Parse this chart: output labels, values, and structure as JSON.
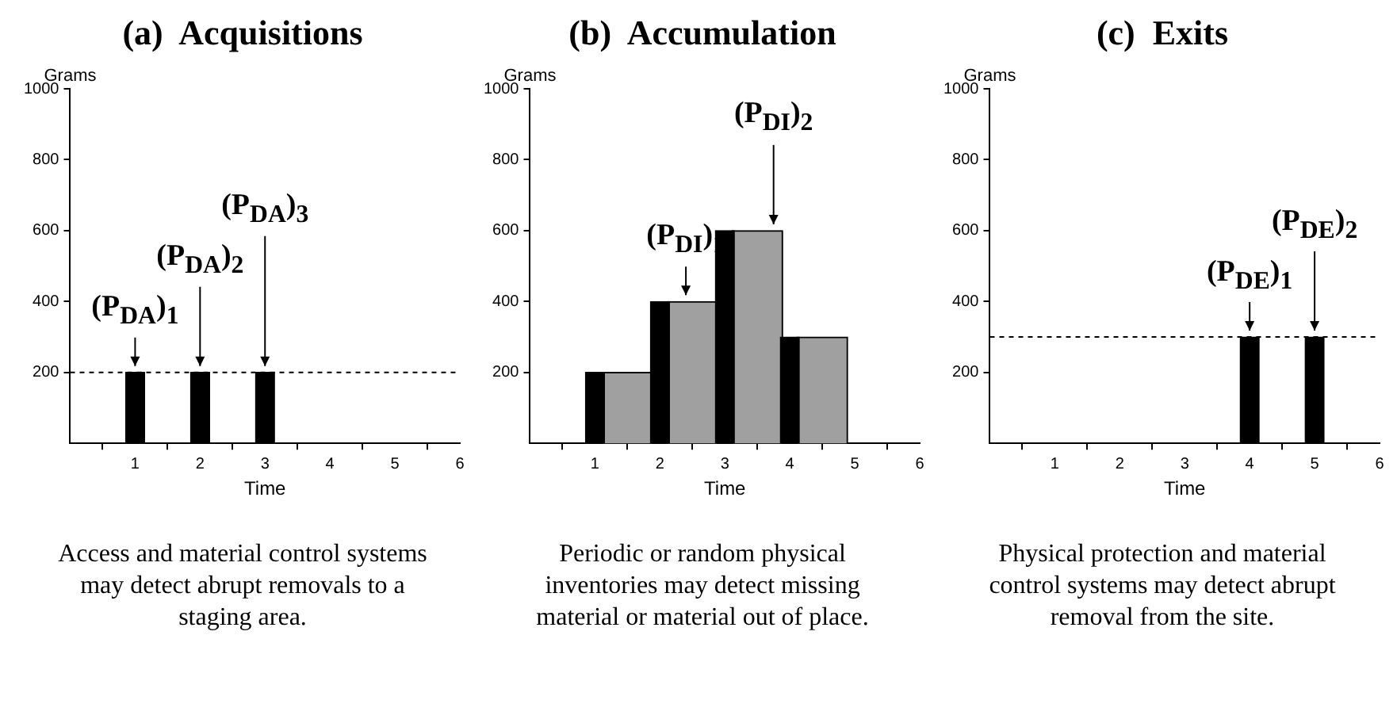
{
  "chart_data": [
    {
      "type": "bar",
      "title": "(a)  Acquisitions",
      "xlabel": "Time",
      "ylabel": "Grams",
      "xlim": [
        0,
        6
      ],
      "xticks": [
        1,
        2,
        3,
        4,
        5,
        6
      ],
      "ylim": [
        0,
        1000
      ],
      "yticks": [
        200,
        400,
        600,
        800,
        1000
      ],
      "series": [
        {
          "color": "#000000",
          "x": [
            1,
            2,
            3
          ],
          "values": [
            200,
            200,
            200
          ]
        }
      ],
      "ref_lines": [
        {
          "axis": "y",
          "value": 200,
          "color": "#000000",
          "line_style": "dashed"
        }
      ],
      "annotations": [
        {
          "text": "(P$_{DA}$)$_{1}$",
          "x": 1,
          "y": 200
        },
        {
          "text": "(P$_{DA}$)$_{2}$",
          "x": 2,
          "y": 200
        },
        {
          "text": "(P$_{DA}$)$_{3}$",
          "x": 3,
          "y": 200
        },
        "Access and material control systems may detect abrupt removals to a staging area."
      ]
    },
    {
      "type": "bar",
      "title": "(b)  Accumulation",
      "xlabel": "Time",
      "ylabel": "Grams",
      "xlim": [
        0,
        6
      ],
      "xticks": [
        1,
        2,
        3,
        4,
        5,
        6
      ],
      "ylim": [
        0,
        1000
      ],
      "yticks": [
        200,
        400,
        600,
        800,
        1000
      ],
      "series": [
        {
          "color": "#a0a0a0",
          "x": [
            1.5,
            2.5,
            3.5,
            4.5
          ],
          "values": [
            200,
            400,
            600,
            300
          ]
        },
        {
          "color": "#000000",
          "x": [
            1,
            2,
            3,
            4
          ],
          "values": [
            200,
            400,
            600,
            300
          ]
        }
      ],
      "annotations": [
        {
          "text": "(P$_{DI}$)$_{1}$",
          "x": 2.4,
          "y": 400
        },
        {
          "text": "(P$_{DI}$)$_{2}$",
          "x": 3.75,
          "y": 600
        },
        "Periodic or random physical inventories may detect missing material or material out of place."
      ]
    },
    {
      "type": "bar",
      "title": "(c)  Exits",
      "xlabel": "Time",
      "ylabel": "Grams",
      "xlim": [
        0,
        6
      ],
      "xticks": [
        1,
        2,
        3,
        4,
        5,
        6
      ],
      "ylim": [
        0,
        1000
      ],
      "yticks": [
        200,
        400,
        600,
        800,
        1000
      ],
      "series": [
        {
          "color": "#000000",
          "x": [
            4,
            5
          ],
          "values": [
            300,
            300
          ]
        }
      ],
      "ref_lines": [
        {
          "axis": "y",
          "value": 300,
          "color": "#000000",
          "line_style": "dashed"
        }
      ],
      "annotations": [
        {
          "text": "(P$_{DE}$)$_{1}$",
          "x": 4,
          "y": 300
        },
        {
          "text": "(P$_{DE}$)$_{2}$",
          "x": 5,
          "y": 300
        },
        "Physical protection and material control systems may detect abrupt removal from the site."
      ]
    }
  ]
}
